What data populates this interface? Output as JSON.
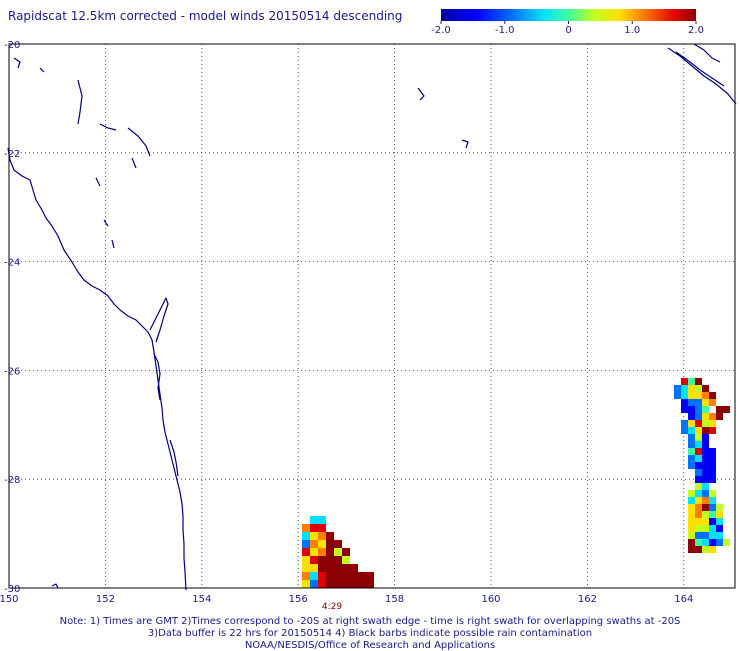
{
  "title": "Rapidscat 12.5km corrected - model winds 20150514 descending",
  "colorbar": {
    "ticks": [
      "-2.0",
      "-1.0",
      "0",
      "1.0",
      "2.0"
    ],
    "tick_values": [
      -2.0,
      -1.0,
      0,
      1.0,
      2.0
    ],
    "range": [
      -2.0,
      2.0
    ]
  },
  "map": {
    "lon_range": [
      150,
      165
    ],
    "lat_range": [
      -30,
      -20
    ],
    "lon_ticks": [
      "150",
      "152",
      "154",
      "156",
      "158",
      "160",
      "162",
      "164"
    ],
    "lon_tick_values": [
      150,
      152,
      154,
      156,
      158,
      160,
      162,
      164
    ],
    "lat_ticks": [
      "-20",
      "-22",
      "-24",
      "-26",
      "-28",
      "-30"
    ],
    "lat_tick_values": [
      -20,
      -22,
      -24,
      -26,
      -28,
      -30
    ],
    "grid": "dotted",
    "swath_time": "4:29",
    "swath_time_lon": 156.7,
    "coast_color": "#000080"
  },
  "notes": {
    "line1": "Note: 1) Times are GMT 2)Times correspond to -20S at right swath edge - time is right swath for overlapping swaths at -20S",
    "line2": "3)Data buffer is 22 hrs for 20150514 4) Black barbs indicate possible rain contamination",
    "line3": "NOAA/NESDIS/Office of Research and Applications"
  }
}
